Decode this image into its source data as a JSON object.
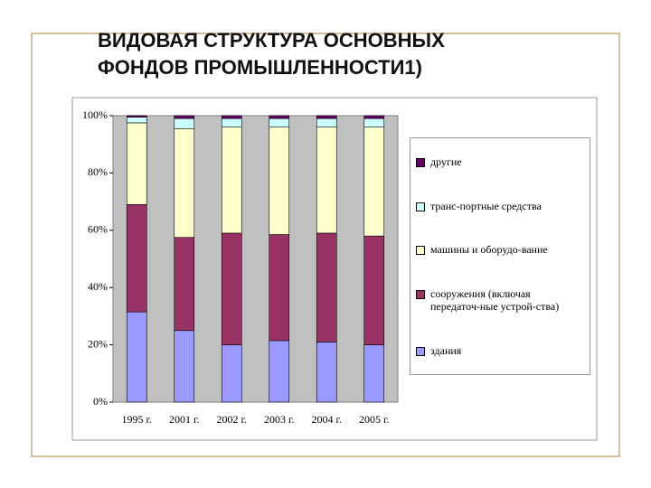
{
  "chart_data": {
    "type": "stacked_bar",
    "title": "ВИДОВАЯ СТРУКТУРА ОСНОВНЫХ ФОНДОВ ПРОМЫШЛЕННОСТИ1)",
    "categories": [
      "1995 г.",
      "2001 г.",
      "2002 г.",
      "2003 г.",
      "2004 г.",
      "2005 г."
    ],
    "series": [
      {
        "name": "здания",
        "color": "#9999ff",
        "values": [
          31.5,
          25,
          20,
          21.5,
          21,
          20
        ]
      },
      {
        "name": "сооружения (включая передаточ-ные устрой-ства)",
        "color": "#993366",
        "values": [
          37.5,
          32.5,
          39,
          37,
          38,
          38
        ]
      },
      {
        "name": "машины и оборудо-вание",
        "color": "#ffffcc",
        "values": [
          28.5,
          38,
          37,
          37.5,
          37,
          38
        ]
      },
      {
        "name": "транс-портные средства",
        "color": "#ccffff",
        "values": [
          2,
          3.5,
          3,
          3,
          3,
          3
        ]
      },
      {
        "name": "другие",
        "color": "#660066",
        "values": [
          0.5,
          1,
          1,
          1,
          1,
          1
        ]
      }
    ],
    "ylim": [
      0,
      100
    ],
    "yticks": [
      {
        "value": 0,
        "label": "0%"
      },
      {
        "value": 20,
        "label": "20%"
      },
      {
        "value": 40,
        "label": "40%"
      },
      {
        "value": 60,
        "label": "60%"
      },
      {
        "value": 80,
        "label": "80%"
      },
      {
        "value": 100,
        "label": "100%"
      }
    ],
    "legend": "right"
  }
}
